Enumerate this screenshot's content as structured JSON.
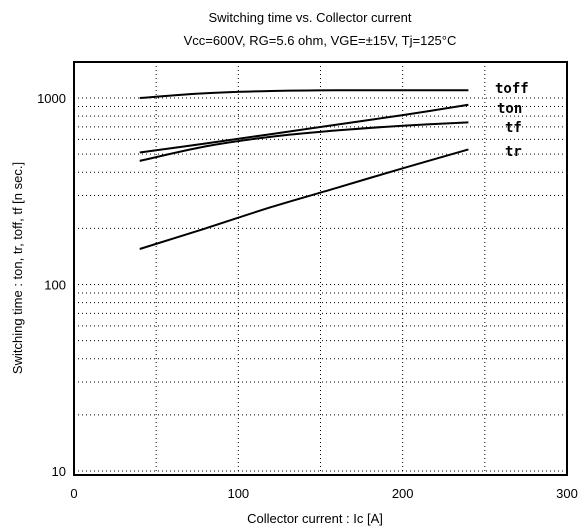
{
  "chart_data": {
    "type": "line",
    "title": "Switching time  vs. Collector current",
    "subtitle": "Vcc=600V, RG=5.6 ohm, VGE=±15V, Tj=125°C",
    "xlabel": "Collector  current  :  Ic [A]",
    "ylabel": "Switching  time  :  ton,  tr,  toff,  tf  [n sec.]",
    "xlim": [
      0,
      300
    ],
    "ylim": [
      10,
      2000
    ],
    "yscale": "log",
    "grid": true,
    "x_ticks": [
      "0",
      "100",
      "200",
      "300"
    ],
    "y_ticks": [
      "10",
      "100",
      "1000"
    ],
    "series": [
      {
        "name": "toff",
        "x": [
          40,
          80,
          120,
          160,
          200,
          240
        ],
        "values": [
          1000,
          1060,
          1090,
          1100,
          1100,
          1100
        ]
      },
      {
        "name": "ton",
        "x": [
          40,
          80,
          120,
          160,
          200,
          240
        ],
        "values": [
          510,
          570,
          640,
          720,
          810,
          920
        ]
      },
      {
        "name": "tf",
        "x": [
          40,
          80,
          120,
          160,
          200,
          240
        ],
        "values": [
          460,
          550,
          620,
          670,
          710,
          740
        ]
      },
      {
        "name": "tr",
        "x": [
          40,
          80,
          120,
          160,
          200,
          240
        ],
        "values": [
          155,
          200,
          260,
          330,
          420,
          530
        ]
      }
    ]
  }
}
